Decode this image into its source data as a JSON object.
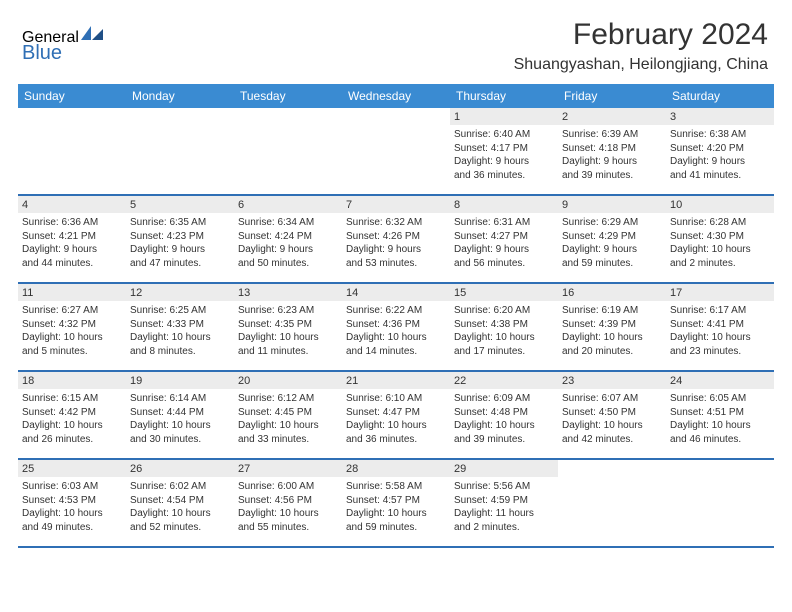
{
  "logo": {
    "text1": "General",
    "text2": "Blue"
  },
  "header": {
    "month_title": "February 2024",
    "location": "Shuangyashan, Heilongjiang, China"
  },
  "calendar": {
    "day_headers": [
      "Sunday",
      "Monday",
      "Tuesday",
      "Wednesday",
      "Thursday",
      "Friday",
      "Saturday"
    ],
    "header_bg": "#3a8bd2",
    "header_fg": "#ffffff",
    "row_border_color": "#2f6fb5",
    "daynum_bg": "#ececec",
    "text_color": "#333333",
    "font_size_day": 11,
    "font_size_body": 10,
    "weeks": [
      [
        null,
        null,
        null,
        null,
        {
          "day": "1",
          "sunrise": "Sunrise: 6:40 AM",
          "sunset": "Sunset: 4:17 PM",
          "daylight1": "Daylight: 9 hours",
          "daylight2": "and 36 minutes."
        },
        {
          "day": "2",
          "sunrise": "Sunrise: 6:39 AM",
          "sunset": "Sunset: 4:18 PM",
          "daylight1": "Daylight: 9 hours",
          "daylight2": "and 39 minutes."
        },
        {
          "day": "3",
          "sunrise": "Sunrise: 6:38 AM",
          "sunset": "Sunset: 4:20 PM",
          "daylight1": "Daylight: 9 hours",
          "daylight2": "and 41 minutes."
        }
      ],
      [
        {
          "day": "4",
          "sunrise": "Sunrise: 6:36 AM",
          "sunset": "Sunset: 4:21 PM",
          "daylight1": "Daylight: 9 hours",
          "daylight2": "and 44 minutes."
        },
        {
          "day": "5",
          "sunrise": "Sunrise: 6:35 AM",
          "sunset": "Sunset: 4:23 PM",
          "daylight1": "Daylight: 9 hours",
          "daylight2": "and 47 minutes."
        },
        {
          "day": "6",
          "sunrise": "Sunrise: 6:34 AM",
          "sunset": "Sunset: 4:24 PM",
          "daylight1": "Daylight: 9 hours",
          "daylight2": "and 50 minutes."
        },
        {
          "day": "7",
          "sunrise": "Sunrise: 6:32 AM",
          "sunset": "Sunset: 4:26 PM",
          "daylight1": "Daylight: 9 hours",
          "daylight2": "and 53 minutes."
        },
        {
          "day": "8",
          "sunrise": "Sunrise: 6:31 AM",
          "sunset": "Sunset: 4:27 PM",
          "daylight1": "Daylight: 9 hours",
          "daylight2": "and 56 minutes."
        },
        {
          "day": "9",
          "sunrise": "Sunrise: 6:29 AM",
          "sunset": "Sunset: 4:29 PM",
          "daylight1": "Daylight: 9 hours",
          "daylight2": "and 59 minutes."
        },
        {
          "day": "10",
          "sunrise": "Sunrise: 6:28 AM",
          "sunset": "Sunset: 4:30 PM",
          "daylight1": "Daylight: 10 hours",
          "daylight2": "and 2 minutes."
        }
      ],
      [
        {
          "day": "11",
          "sunrise": "Sunrise: 6:27 AM",
          "sunset": "Sunset: 4:32 PM",
          "daylight1": "Daylight: 10 hours",
          "daylight2": "and 5 minutes."
        },
        {
          "day": "12",
          "sunrise": "Sunrise: 6:25 AM",
          "sunset": "Sunset: 4:33 PM",
          "daylight1": "Daylight: 10 hours",
          "daylight2": "and 8 minutes."
        },
        {
          "day": "13",
          "sunrise": "Sunrise: 6:23 AM",
          "sunset": "Sunset: 4:35 PM",
          "daylight1": "Daylight: 10 hours",
          "daylight2": "and 11 minutes."
        },
        {
          "day": "14",
          "sunrise": "Sunrise: 6:22 AM",
          "sunset": "Sunset: 4:36 PM",
          "daylight1": "Daylight: 10 hours",
          "daylight2": "and 14 minutes."
        },
        {
          "day": "15",
          "sunrise": "Sunrise: 6:20 AM",
          "sunset": "Sunset: 4:38 PM",
          "daylight1": "Daylight: 10 hours",
          "daylight2": "and 17 minutes."
        },
        {
          "day": "16",
          "sunrise": "Sunrise: 6:19 AM",
          "sunset": "Sunset: 4:39 PM",
          "daylight1": "Daylight: 10 hours",
          "daylight2": "and 20 minutes."
        },
        {
          "day": "17",
          "sunrise": "Sunrise: 6:17 AM",
          "sunset": "Sunset: 4:41 PM",
          "daylight1": "Daylight: 10 hours",
          "daylight2": "and 23 minutes."
        }
      ],
      [
        {
          "day": "18",
          "sunrise": "Sunrise: 6:15 AM",
          "sunset": "Sunset: 4:42 PM",
          "daylight1": "Daylight: 10 hours",
          "daylight2": "and 26 minutes."
        },
        {
          "day": "19",
          "sunrise": "Sunrise: 6:14 AM",
          "sunset": "Sunset: 4:44 PM",
          "daylight1": "Daylight: 10 hours",
          "daylight2": "and 30 minutes."
        },
        {
          "day": "20",
          "sunrise": "Sunrise: 6:12 AM",
          "sunset": "Sunset: 4:45 PM",
          "daylight1": "Daylight: 10 hours",
          "daylight2": "and 33 minutes."
        },
        {
          "day": "21",
          "sunrise": "Sunrise: 6:10 AM",
          "sunset": "Sunset: 4:47 PM",
          "daylight1": "Daylight: 10 hours",
          "daylight2": "and 36 minutes."
        },
        {
          "day": "22",
          "sunrise": "Sunrise: 6:09 AM",
          "sunset": "Sunset: 4:48 PM",
          "daylight1": "Daylight: 10 hours",
          "daylight2": "and 39 minutes."
        },
        {
          "day": "23",
          "sunrise": "Sunrise: 6:07 AM",
          "sunset": "Sunset: 4:50 PM",
          "daylight1": "Daylight: 10 hours",
          "daylight2": "and 42 minutes."
        },
        {
          "day": "24",
          "sunrise": "Sunrise: 6:05 AM",
          "sunset": "Sunset: 4:51 PM",
          "daylight1": "Daylight: 10 hours",
          "daylight2": "and 46 minutes."
        }
      ],
      [
        {
          "day": "25",
          "sunrise": "Sunrise: 6:03 AM",
          "sunset": "Sunset: 4:53 PM",
          "daylight1": "Daylight: 10 hours",
          "daylight2": "and 49 minutes."
        },
        {
          "day": "26",
          "sunrise": "Sunrise: 6:02 AM",
          "sunset": "Sunset: 4:54 PM",
          "daylight1": "Daylight: 10 hours",
          "daylight2": "and 52 minutes."
        },
        {
          "day": "27",
          "sunrise": "Sunrise: 6:00 AM",
          "sunset": "Sunset: 4:56 PM",
          "daylight1": "Daylight: 10 hours",
          "daylight2": "and 55 minutes."
        },
        {
          "day": "28",
          "sunrise": "Sunrise: 5:58 AM",
          "sunset": "Sunset: 4:57 PM",
          "daylight1": "Daylight: 10 hours",
          "daylight2": "and 59 minutes."
        },
        {
          "day": "29",
          "sunrise": "Sunrise: 5:56 AM",
          "sunset": "Sunset: 4:59 PM",
          "daylight1": "Daylight: 11 hours",
          "daylight2": "and 2 minutes."
        },
        null,
        null
      ]
    ]
  }
}
